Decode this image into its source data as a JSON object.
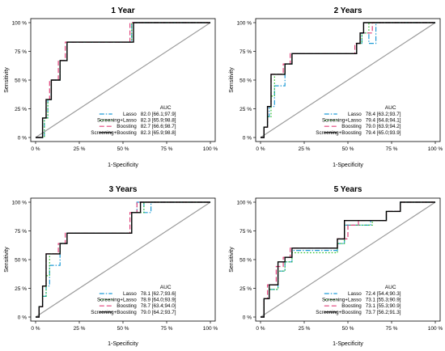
{
  "chart_data": [
    {
      "type": "line",
      "title": "1 Year",
      "xlabel": "1-Specificity",
      "ylabel": "Sensitivity",
      "xlim": [
        0,
        100
      ],
      "ylim": [
        0,
        100
      ],
      "x_ticks": [
        "0 %",
        "25 %",
        "50 %",
        "75 %",
        "100 %"
      ],
      "y_ticks": [
        "0 %",
        "25 %",
        "50 %",
        "75 %",
        "100 %"
      ],
      "legend_title": "AUC",
      "legend_position": "bottom-right",
      "series": [
        {
          "name": "Lasso",
          "auc": "82.0 [66.1;97.9]",
          "color": "#1f9bd6",
          "dash": "dash-dot",
          "x": [
            0,
            5,
            5,
            7,
            7,
            9,
            9,
            14,
            14,
            18,
            18,
            55,
            55,
            100
          ],
          "y": [
            0,
            0,
            17,
            17,
            33,
            33,
            50,
            50,
            67,
            67,
            83,
            83,
            100,
            100
          ]
        },
        {
          "name": "Screening+Lasso",
          "auc": "82.3 [65.9;98.8]",
          "color": "#2dbf2d",
          "dash": "dotted",
          "x": [
            0,
            5,
            5,
            7,
            7,
            9,
            9,
            14,
            14,
            18,
            18,
            55,
            55,
            100
          ],
          "y": [
            0,
            0,
            17,
            17,
            33,
            33,
            50,
            50,
            67,
            67,
            83,
            83,
            100,
            100
          ]
        },
        {
          "name": "Boosting",
          "auc": "82.7 [66.6;98.7]",
          "color": "#e0417a",
          "dash": "dashed",
          "x": [
            0,
            4,
            4,
            6,
            6,
            8,
            8,
            13,
            13,
            17,
            17,
            54,
            54,
            100
          ],
          "y": [
            0,
            0,
            17,
            17,
            33,
            33,
            50,
            50,
            67,
            67,
            83,
            83,
            100,
            100
          ]
        },
        {
          "name": "Screening+Boosting",
          "auc": "82.3 [65.9;98.8]",
          "color": "#000000",
          "dash": "solid",
          "x": [
            0,
            4,
            4,
            6,
            6,
            9,
            9,
            14,
            14,
            18,
            18,
            56,
            56,
            100
          ],
          "y": [
            0,
            0,
            17,
            17,
            33,
            33,
            50,
            50,
            67,
            67,
            83,
            83,
            100,
            100
          ]
        }
      ]
    },
    {
      "type": "line",
      "title": "2 Years",
      "xlabel": "1-Specificity",
      "ylabel": "Sensitivity",
      "xlim": [
        0,
        100
      ],
      "ylim": [
        0,
        100
      ],
      "x_ticks": [
        "0 %",
        "25 %",
        "50 %",
        "75 %",
        "100 %"
      ],
      "y_ticks": [
        "0 %",
        "25 %",
        "50 %",
        "75 %",
        "100 %"
      ],
      "legend_title": "AUC",
      "legend_position": "bottom-right",
      "series": [
        {
          "name": "Lasso",
          "auc": "78.4 [63.2;93.7]",
          "color": "#1f9bd6",
          "dash": "dash-dot",
          "x": [
            0,
            2,
            2,
            4,
            4,
            5,
            5,
            8,
            8,
            14,
            14,
            18,
            18,
            55,
            55,
            58,
            58,
            62,
            62,
            66,
            66,
            100
          ],
          "y": [
            0,
            0,
            9,
            9,
            18,
            18,
            27,
            27,
            45,
            45,
            64,
            64,
            73,
            73,
            82,
            82,
            91,
            91,
            82,
            82,
            100,
            100
          ]
        },
        {
          "name": "Screening+Lasso",
          "auc": "79.4 [64.8;94.1]",
          "color": "#2dbf2d",
          "dash": "dotted",
          "x": [
            0,
            2,
            2,
            4,
            4,
            6,
            6,
            8,
            8,
            14,
            14,
            18,
            18,
            55,
            55,
            58,
            58,
            62,
            62,
            100
          ],
          "y": [
            0,
            0,
            9,
            9,
            18,
            18,
            36,
            36,
            55,
            55,
            64,
            64,
            73,
            73,
            82,
            82,
            91,
            91,
            100,
            100
          ]
        },
        {
          "name": "Boosting",
          "auc": "79.0 [63.9;94.2]",
          "color": "#e0417a",
          "dash": "dashed",
          "x": [
            0,
            2,
            2,
            4,
            4,
            6,
            6,
            13,
            13,
            17,
            17,
            54,
            54,
            57,
            57,
            64,
            64,
            100
          ],
          "y": [
            0,
            0,
            9,
            9,
            27,
            27,
            55,
            55,
            64,
            64,
            73,
            73,
            82,
            82,
            91,
            91,
            100,
            100
          ]
        },
        {
          "name": "Screening+Boosting",
          "auc": "79.4 [65.0;93.9]",
          "color": "#000000",
          "dash": "solid",
          "x": [
            0,
            2,
            2,
            4,
            4,
            6,
            6,
            14,
            14,
            18,
            18,
            55,
            55,
            57,
            57,
            59,
            59,
            100
          ],
          "y": [
            0,
            0,
            9,
            9,
            27,
            27,
            55,
            55,
            64,
            64,
            73,
            73,
            82,
            82,
            91,
            91,
            100,
            100
          ]
        }
      ]
    },
    {
      "type": "line",
      "title": "3 Years",
      "xlabel": "1-Specificity",
      "ylabel": "Sensitivity",
      "xlim": [
        0,
        100
      ],
      "ylim": [
        0,
        100
      ],
      "x_ticks": [
        "0 %",
        "25 %",
        "50 %",
        "75 %",
        "100 %"
      ],
      "y_ticks": [
        "0 %",
        "25 %",
        "50 %",
        "75 %",
        "100 %"
      ],
      "legend_title": "AUC",
      "legend_position": "bottom-right",
      "series": [
        {
          "name": "Lasso",
          "auc": "78.1 [62.7;93.6]",
          "color": "#1f9bd6",
          "dash": "dash-dot",
          "x": [
            0,
            2,
            2,
            4,
            4,
            6,
            6,
            8,
            8,
            14,
            14,
            18,
            18,
            55,
            55,
            58,
            58,
            62,
            62,
            66,
            66,
            100
          ],
          "y": [
            0,
            0,
            9,
            9,
            18,
            18,
            27,
            27,
            45,
            45,
            64,
            64,
            73,
            73,
            91,
            91,
            100,
            100,
            91,
            91,
            100,
            100
          ]
        },
        {
          "name": "Screening+Lasso",
          "auc": "78.9 [64.0;93.9]",
          "color": "#2dbf2d",
          "dash": "dotted",
          "x": [
            0,
            2,
            2,
            4,
            4,
            6,
            6,
            8,
            8,
            14,
            14,
            18,
            18,
            55,
            55,
            62,
            62,
            100
          ],
          "y": [
            0,
            0,
            9,
            9,
            18,
            18,
            36,
            36,
            55,
            55,
            64,
            64,
            73,
            73,
            91,
            91,
            100,
            100
          ]
        },
        {
          "name": "Boosting",
          "auc": "78.7 [63.4;94.0]",
          "color": "#e0417a",
          "dash": "dashed",
          "x": [
            0,
            2,
            2,
            4,
            4,
            6,
            6,
            13,
            13,
            17,
            17,
            54,
            54,
            58,
            58,
            100
          ],
          "y": [
            0,
            0,
            9,
            9,
            27,
            27,
            55,
            55,
            64,
            64,
            73,
            73,
            91,
            91,
            100,
            100
          ]
        },
        {
          "name": "Screening+Boosting",
          "auc": "79.0 [64.2;93.7]",
          "color": "#000000",
          "dash": "solid",
          "x": [
            0,
            2,
            2,
            4,
            4,
            6,
            6,
            14,
            14,
            18,
            18,
            55,
            55,
            60,
            60,
            100
          ],
          "y": [
            0,
            0,
            9,
            9,
            27,
            27,
            55,
            55,
            64,
            64,
            73,
            73,
            91,
            91,
            100,
            100
          ]
        }
      ]
    },
    {
      "type": "line",
      "title": "5 Years",
      "xlabel": "1-Specificity",
      "ylabel": "Sensitivity",
      "xlim": [
        0,
        100
      ],
      "ylim": [
        0,
        100
      ],
      "x_ticks": [
        "0 %",
        "25 %",
        "50 %",
        "75 %",
        "100 %"
      ],
      "y_ticks": [
        "0 %",
        "25 %",
        "50 %",
        "75 %",
        "100 %"
      ],
      "legend_title": "AUC",
      "legend_position": "bottom-right",
      "series": [
        {
          "name": "Lasso",
          "auc": "72.4 [54.4;90.3]",
          "color": "#1f9bd6",
          "dash": "dash-dot",
          "x": [
            0,
            2,
            2,
            5,
            5,
            10,
            10,
            14,
            14,
            18,
            18,
            44,
            44,
            48,
            48,
            55,
            55,
            63,
            63,
            72,
            72,
            80,
            80,
            100
          ],
          "y": [
            0,
            0,
            16,
            16,
            24,
            24,
            40,
            40,
            48,
            48,
            58,
            58,
            64,
            64,
            80,
            80,
            80,
            80,
            84,
            84,
            92,
            92,
            100,
            100
          ]
        },
        {
          "name": "Screening+Lasso",
          "auc": "73.1 [55.3;90.9]",
          "color": "#2dbf2d",
          "dash": "dotted",
          "x": [
            0,
            2,
            2,
            5,
            5,
            10,
            10,
            14,
            14,
            18,
            18,
            44,
            44,
            48,
            48,
            64,
            64,
            72,
            72,
            80,
            80,
            100
          ],
          "y": [
            0,
            0,
            16,
            16,
            24,
            24,
            40,
            40,
            48,
            48,
            56,
            56,
            64,
            64,
            80,
            80,
            84,
            84,
            92,
            92,
            100,
            100
          ]
        },
        {
          "name": "Boosting",
          "auc": "73.1 [55.3;90.9]",
          "color": "#e0417a",
          "dash": "dashed",
          "x": [
            0,
            2,
            2,
            4,
            4,
            9,
            9,
            13,
            13,
            17,
            17,
            44,
            44,
            50,
            50,
            56,
            56,
            72,
            72,
            80,
            80,
            100
          ],
          "y": [
            0,
            0,
            16,
            16,
            28,
            28,
            44,
            44,
            52,
            52,
            60,
            60,
            68,
            68,
            80,
            80,
            84,
            84,
            92,
            92,
            100,
            100
          ]
        },
        {
          "name": "Screening+Boosting",
          "auc": "73.7 [56.2;91.3]",
          "color": "#000000",
          "dash": "solid",
          "x": [
            0,
            2,
            2,
            5,
            5,
            10,
            10,
            14,
            14,
            18,
            18,
            44,
            44,
            48,
            48,
            64,
            64,
            72,
            72,
            80,
            80,
            100
          ],
          "y": [
            0,
            0,
            16,
            16,
            28,
            28,
            48,
            48,
            52,
            52,
            60,
            60,
            68,
            68,
            84,
            84,
            84,
            84,
            92,
            92,
            100,
            100
          ]
        }
      ]
    }
  ]
}
